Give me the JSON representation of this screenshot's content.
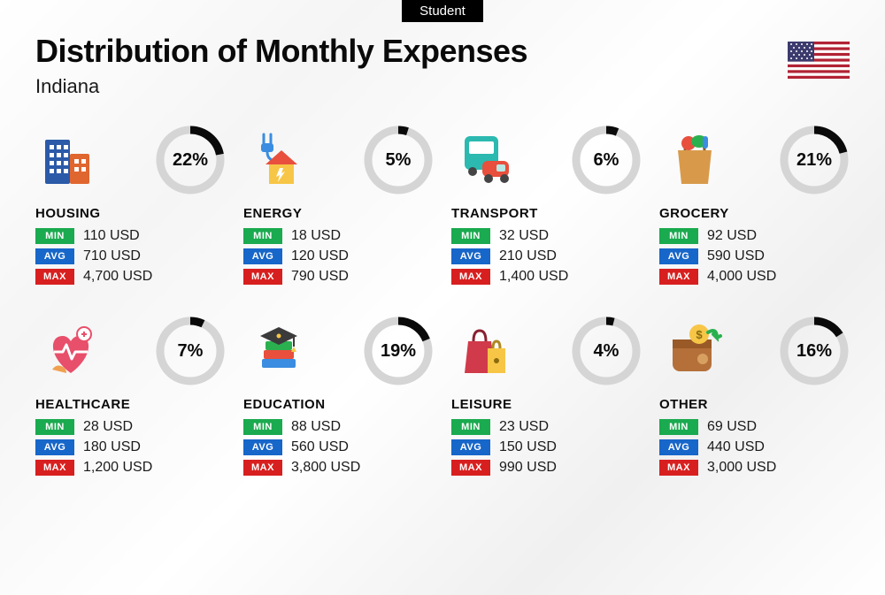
{
  "badge": "Student",
  "title": "Distribution of Monthly Expenses",
  "subtitle": "Indiana",
  "ring": {
    "track_color": "#d5d5d5",
    "progress_color": "#0a0a0a",
    "stroke_width": 9,
    "radius": 34
  },
  "pills": {
    "min": {
      "label": "MIN",
      "bg": "#1aaa4f"
    },
    "avg": {
      "label": "AVG",
      "bg": "#1766c9"
    },
    "max": {
      "label": "MAX",
      "bg": "#d81f1f"
    }
  },
  "categories": [
    {
      "name": "HOUSING",
      "percent": 22,
      "min": "110 USD",
      "avg": "710 USD",
      "max": "4,700 USD",
      "icon": "housing"
    },
    {
      "name": "ENERGY",
      "percent": 5,
      "min": "18 USD",
      "avg": "120 USD",
      "max": "790 USD",
      "icon": "energy"
    },
    {
      "name": "TRANSPORT",
      "percent": 6,
      "min": "32 USD",
      "avg": "210 USD",
      "max": "1,400 USD",
      "icon": "transport"
    },
    {
      "name": "GROCERY",
      "percent": 21,
      "min": "92 USD",
      "avg": "590 USD",
      "max": "4,000 USD",
      "icon": "grocery"
    },
    {
      "name": "HEALTHCARE",
      "percent": 7,
      "min": "28 USD",
      "avg": "180 USD",
      "max": "1,200 USD",
      "icon": "healthcare"
    },
    {
      "name": "EDUCATION",
      "percent": 19,
      "min": "88 USD",
      "avg": "560 USD",
      "max": "3,800 USD",
      "icon": "education"
    },
    {
      "name": "LEISURE",
      "percent": 4,
      "min": "23 USD",
      "avg": "150 USD",
      "max": "990 USD",
      "icon": "leisure"
    },
    {
      "name": "OTHER",
      "percent": 16,
      "min": "69 USD",
      "avg": "440 USD",
      "max": "3,000 USD",
      "icon": "other"
    }
  ],
  "icon_colors": {
    "housing": {
      "a": "#2b5aa8",
      "b": "#e0662f"
    },
    "energy": {
      "a": "#f7c646",
      "b": "#3a8de0",
      "c": "#e84f3d"
    },
    "transport": {
      "a": "#2bb9b0",
      "b": "#e84f3d"
    },
    "grocery": {
      "a": "#d89a4a",
      "b": "#2bb04f",
      "c": "#e84f3d",
      "d": "#3a8de0"
    },
    "healthcare": {
      "a": "#e84f6a",
      "b": "#f0a050"
    },
    "education": {
      "a": "#3b3b3b",
      "b": "#2bb04f",
      "c": "#e84f3d",
      "d": "#3a8de0",
      "e": "#f7c646"
    },
    "leisure": {
      "a": "#d03a4a",
      "b": "#f7c646"
    },
    "other": {
      "a": "#b5703a",
      "b": "#2bb04f",
      "c": "#f7c646"
    }
  }
}
